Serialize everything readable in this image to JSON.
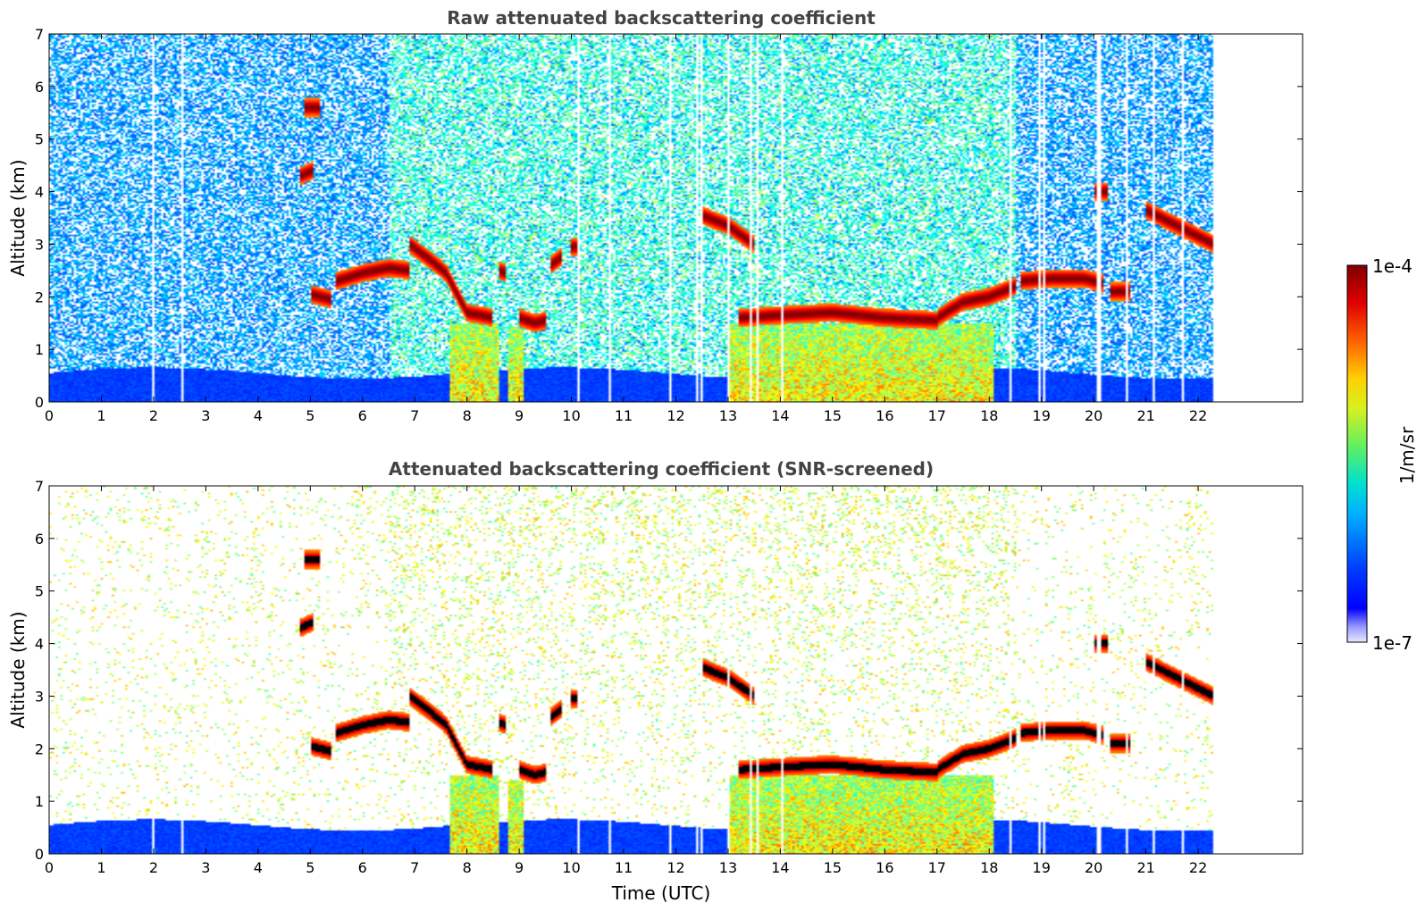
{
  "chart_data": [
    {
      "type": "heatmap",
      "title": "Raw attenuated backscattering coefficient",
      "xlabel": "",
      "ylabel": "Altitude (km)",
      "xlim": [
        0,
        24
      ],
      "ylim": [
        0,
        7
      ],
      "xticks": [
        "0",
        "1",
        "2",
        "3",
        "4",
        "5",
        "6",
        "7",
        "8",
        "9",
        "10",
        "11",
        "12",
        "13",
        "14",
        "15",
        "16",
        "17",
        "18",
        "19",
        "20",
        "21",
        "22"
      ],
      "yticks": [
        "0",
        "1",
        "2",
        "3",
        "4",
        "5",
        "6",
        "7"
      ],
      "data_end_time": 22.3,
      "screened": false,
      "dropout_times": [
        2.0,
        2.55,
        10.15,
        10.75,
        11.9,
        12.4,
        12.5,
        13.0,
        13.45,
        13.55,
        14.05,
        18.4,
        18.95,
        19.05,
        20.1,
        20.65,
        21.15,
        21.7
      ],
      "cloud_layers": [
        {
          "t": [
            4.8,
            5.05
          ],
          "z": [
            4.3,
            4.4
          ]
        },
        {
          "t": [
            4.9,
            5.2
          ],
          "z": [
            5.6,
            5.6
          ]
        },
        {
          "t": [
            5.5,
            6.0,
            6.5,
            6.9
          ],
          "z": [
            2.3,
            2.45,
            2.55,
            2.5
          ]
        },
        {
          "t": [
            5.0,
            5.4
          ],
          "z": [
            2.05,
            1.95
          ]
        },
        {
          "t": [
            6.9,
            7.3,
            7.6,
            8.0,
            8.5
          ],
          "z": [
            3.0,
            2.7,
            2.45,
            1.7,
            1.6
          ]
        },
        {
          "t": [
            8.6,
            8.75
          ],
          "z": [
            2.5,
            2.45
          ]
        },
        {
          "t": [
            9.0,
            9.3,
            9.5
          ],
          "z": [
            1.6,
            1.5,
            1.55
          ]
        },
        {
          "t": [
            9.6,
            9.8
          ],
          "z": [
            2.6,
            2.75
          ]
        },
        {
          "t": [
            10.0,
            10.15
          ],
          "z": [
            2.95,
            2.95
          ]
        },
        {
          "t": [
            12.5,
            13.0,
            13.5
          ],
          "z": [
            3.55,
            3.35,
            3.0
          ]
        },
        {
          "t": [
            13.2,
            14.0,
            15.0,
            16.0,
            17.0
          ],
          "z": [
            1.6,
            1.65,
            1.7,
            1.6,
            1.55
          ]
        },
        {
          "t": [
            17.0,
            17.5,
            18.0,
            18.5
          ],
          "z": [
            1.6,
            1.9,
            2.0,
            2.2
          ]
        },
        {
          "t": [
            18.6,
            19.2,
            19.8,
            20.2
          ],
          "z": [
            2.3,
            2.35,
            2.35,
            2.25
          ]
        },
        {
          "t": [
            20.3,
            20.7
          ],
          "z": [
            2.1,
            2.1
          ]
        },
        {
          "t": [
            20.0,
            20.25
          ],
          "z": [
            4.0,
            4.0
          ]
        },
        {
          "t": [
            21.0,
            21.5,
            22.3
          ],
          "z": [
            3.65,
            3.4,
            3.0
          ]
        }
      ],
      "precip_columns": [
        {
          "t": [
            7.65,
            8.6
          ],
          "top": 1.5
        },
        {
          "t": [
            8.8,
            9.1
          ],
          "top": 1.4
        },
        {
          "t": [
            13.0,
            18.1
          ],
          "top": 1.5
        }
      ]
    },
    {
      "type": "heatmap",
      "title": "Attenuated backscattering coefficient (SNR-screened)",
      "xlabel": "Time (UTC)",
      "ylabel": "Altitude (km)",
      "xlim": [
        0,
        24
      ],
      "ylim": [
        0,
        7
      ],
      "xticks": [
        "0",
        "1",
        "2",
        "3",
        "4",
        "5",
        "6",
        "7",
        "8",
        "9",
        "10",
        "11",
        "12",
        "13",
        "14",
        "15",
        "16",
        "17",
        "18",
        "19",
        "20",
        "21",
        "22"
      ],
      "yticks": [
        "0",
        "1",
        "2",
        "3",
        "4",
        "5",
        "6",
        "7"
      ],
      "data_end_time": 22.3,
      "screened": true
    }
  ],
  "colorbar": {
    "label": "1/m/sr",
    "max_label": "1e-4",
    "min_label": "1e-7",
    "colormap": "jet",
    "scale": "log",
    "range": [
      1e-07,
      0.0001
    ]
  }
}
